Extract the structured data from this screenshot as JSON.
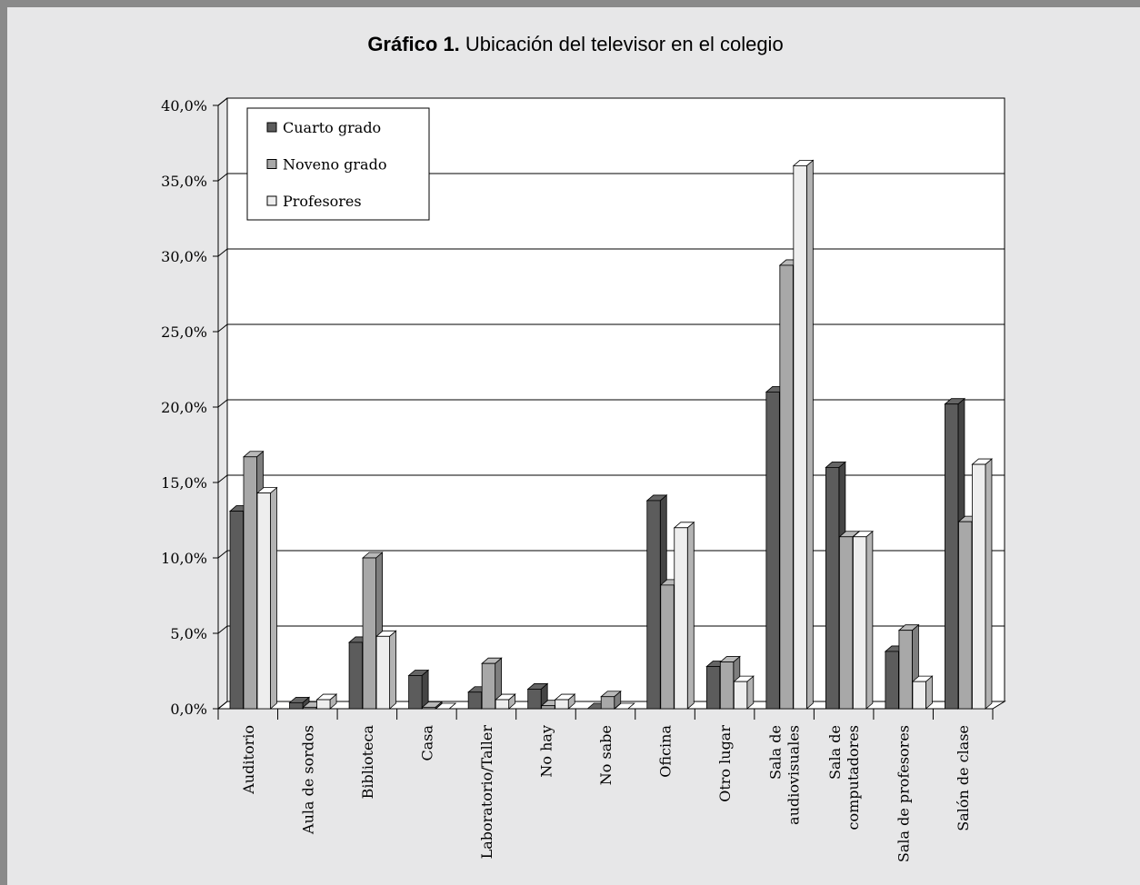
{
  "chart_data": {
    "type": "bar3d",
    "title_prefix": "Gráfico 1.",
    "title": "Ubicación del televisor en el colegio",
    "categories": [
      "Auditorio",
      "Aula de sordos",
      "Biblioteca",
      "Casa",
      "Laboratorio/Taller",
      "No hay",
      "No sabe",
      "Oficina",
      "Otro lugar",
      "Sala de\naudiovisuales",
      "Sala de\ncomputadores",
      "Sala de profesores",
      "Salón de clase"
    ],
    "series": [
      {
        "name": "Cuarto grado",
        "color": "#5c5c5c",
        "values": [
          13.1,
          0.4,
          4.4,
          2.2,
          1.1,
          1.3,
          0.0,
          13.8,
          2.8,
          21.0,
          16.0,
          3.8,
          20.2
        ]
      },
      {
        "name": "Noveno grado",
        "color": "#a8a8a8",
        "values": [
          16.7,
          0.1,
          10.0,
          0.1,
          3.0,
          0.2,
          0.8,
          8.2,
          3.1,
          29.4,
          11.4,
          5.2,
          12.4
        ]
      },
      {
        "name": "Profesores",
        "color": "#eeeeee",
        "values": [
          14.3,
          0.6,
          4.8,
          0.0,
          0.6,
          0.6,
          0.0,
          12.0,
          1.8,
          36.0,
          11.4,
          1.8,
          16.2
        ]
      }
    ],
    "ylim": [
      0,
      40
    ],
    "yticks": [
      {
        "value": 0,
        "label": "0,0%"
      },
      {
        "value": 5,
        "label": "5,0%"
      },
      {
        "value": 10,
        "label": "10,0%"
      },
      {
        "value": 15,
        "label": "15,0%"
      },
      {
        "value": 20,
        "label": "20,0%"
      },
      {
        "value": 25,
        "label": "25,0%"
      },
      {
        "value": 30,
        "label": "30,0%"
      },
      {
        "value": 35,
        "label": "35,0%"
      },
      {
        "value": 40,
        "label": "40,0%"
      }
    ],
    "grid": true,
    "legend": "upper left"
  }
}
